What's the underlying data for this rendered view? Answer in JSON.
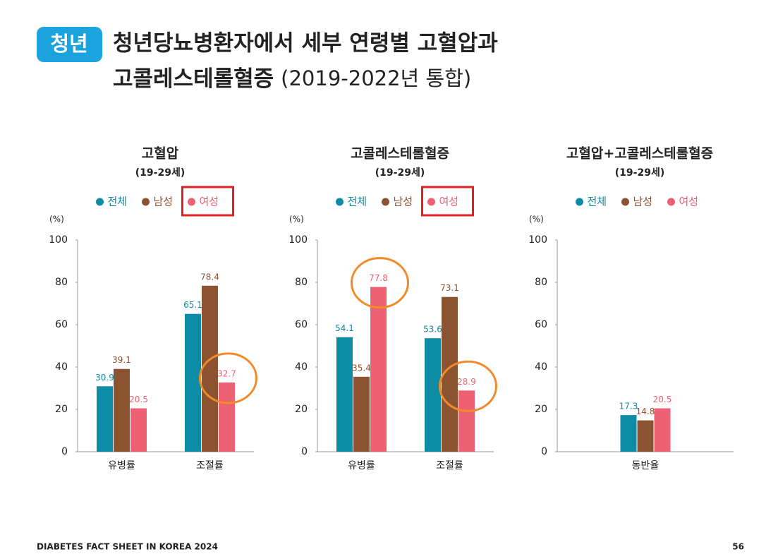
{
  "badge": "청년",
  "title_line1": "청년당뇨병환자에서 세부 연령별 고혈압과",
  "title_line2": "고콜레스테롤혈증",
  "title_suffix": "(2019-2022년 통합)",
  "chart_data": [
    {
      "type": "bar",
      "title": "고혈압",
      "subtitle": "(19-29세)",
      "y_label": "(%)",
      "categories": [
        "유병률",
        "조절률"
      ],
      "series": [
        {
          "name": "전체",
          "color": "#0e8ba5",
          "values": [
            30.9,
            65.1
          ]
        },
        {
          "name": "남성",
          "color": "#8b5330",
          "values": [
            39.1,
            78.4
          ]
        },
        {
          "name": "여성",
          "color": "#ee6173",
          "values": [
            20.5,
            32.7
          ]
        }
      ],
      "ylim": [
        0,
        100
      ],
      "yticks": [
        0,
        20,
        40,
        60,
        80,
        100
      ]
    },
    {
      "type": "bar",
      "title": "고콜레스테롤혈증",
      "subtitle": "(19-29세)",
      "y_label": "(%)",
      "categories": [
        "유병률",
        "조절률"
      ],
      "series": [
        {
          "name": "전체",
          "color": "#0e8ba5",
          "values": [
            54.1,
            53.6
          ]
        },
        {
          "name": "남성",
          "color": "#8b5330",
          "values": [
            35.4,
            73.1
          ]
        },
        {
          "name": "여성",
          "color": "#ee6173",
          "values": [
            77.8,
            28.9
          ]
        }
      ],
      "ylim": [
        0,
        100
      ],
      "yticks": [
        0,
        20,
        40,
        60,
        80,
        100
      ]
    },
    {
      "type": "bar",
      "title": "고혈압+고콜레스테롤혈증",
      "subtitle": "(19-29세)",
      "y_label": "(%)",
      "categories": [
        "동반율"
      ],
      "series": [
        {
          "name": "전체",
          "color": "#0e8ba5",
          "values": [
            17.3
          ]
        },
        {
          "name": "남성",
          "color": "#8b5330",
          "values": [
            14.8
          ]
        },
        {
          "name": "여성",
          "color": "#ee6173",
          "values": [
            20.5
          ]
        }
      ],
      "ylim": [
        0,
        100
      ],
      "yticks": [
        0,
        20,
        40,
        60,
        80,
        100
      ]
    }
  ],
  "footer": {
    "left": "DIABETES FACT SHEET IN KOREA 2024",
    "page": "56"
  }
}
